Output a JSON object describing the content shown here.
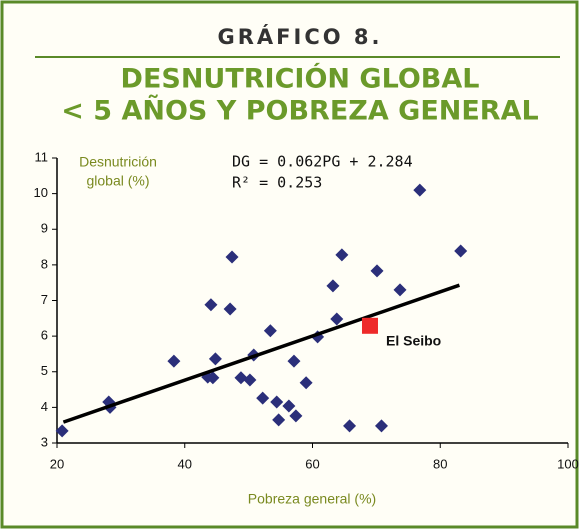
{
  "chart_data": {
    "type": "scatter",
    "header": "GRÁFICO 8.",
    "title": [
      "DESNUTRICIÓN GLOBAL",
      "< 5 AÑOS Y POBREZA GENERAL"
    ],
    "ylabel": [
      "Desnutrición",
      "global (%)"
    ],
    "xlabel": "Pobreza general (%)",
    "equation": [
      "DG = 0.062PG + 2.284",
      "R² = 0.253"
    ],
    "xlim": [
      20,
      100
    ],
    "xticks": [
      20,
      40,
      60,
      80,
      100
    ],
    "ylim": [
      3,
      11
    ],
    "yticks": [
      3,
      4,
      5,
      6,
      7,
      8,
      9,
      10,
      11
    ],
    "series": [
      {
        "color": "#2b2f7a",
        "x": [
          20.8,
          28.1,
          28.3,
          38.3,
          43.6,
          44.4,
          44.1,
          44.8,
          47.1,
          47.4,
          48.8,
          50.2,
          50.8,
          52.2,
          53.4,
          54.4,
          54.7,
          56.3,
          57.1,
          57.4,
          59.0,
          60.8,
          63.2,
          63.8,
          64.6,
          65.8,
          70.1,
          70.8,
          73.7,
          76.8,
          83.2
        ],
        "values": [
          3.34,
          4.15,
          4.0,
          5.3,
          4.85,
          4.83,
          6.88,
          5.36,
          6.76,
          8.22,
          4.83,
          4.77,
          5.47,
          4.26,
          6.15,
          4.15,
          3.65,
          4.04,
          5.3,
          3.76,
          4.69,
          5.98,
          7.41,
          6.48,
          8.28,
          3.48,
          7.83,
          3.48,
          7.3,
          10.1,
          8.39
        ]
      }
    ],
    "highlight": {
      "label": "El Seibo",
      "x": 69.0,
      "value": 6.29,
      "color": "#ee2a2a"
    },
    "trendline": {
      "color": "#000000",
      "x": [
        21,
        83
      ],
      "values": [
        3.586,
        7.43
      ]
    }
  }
}
